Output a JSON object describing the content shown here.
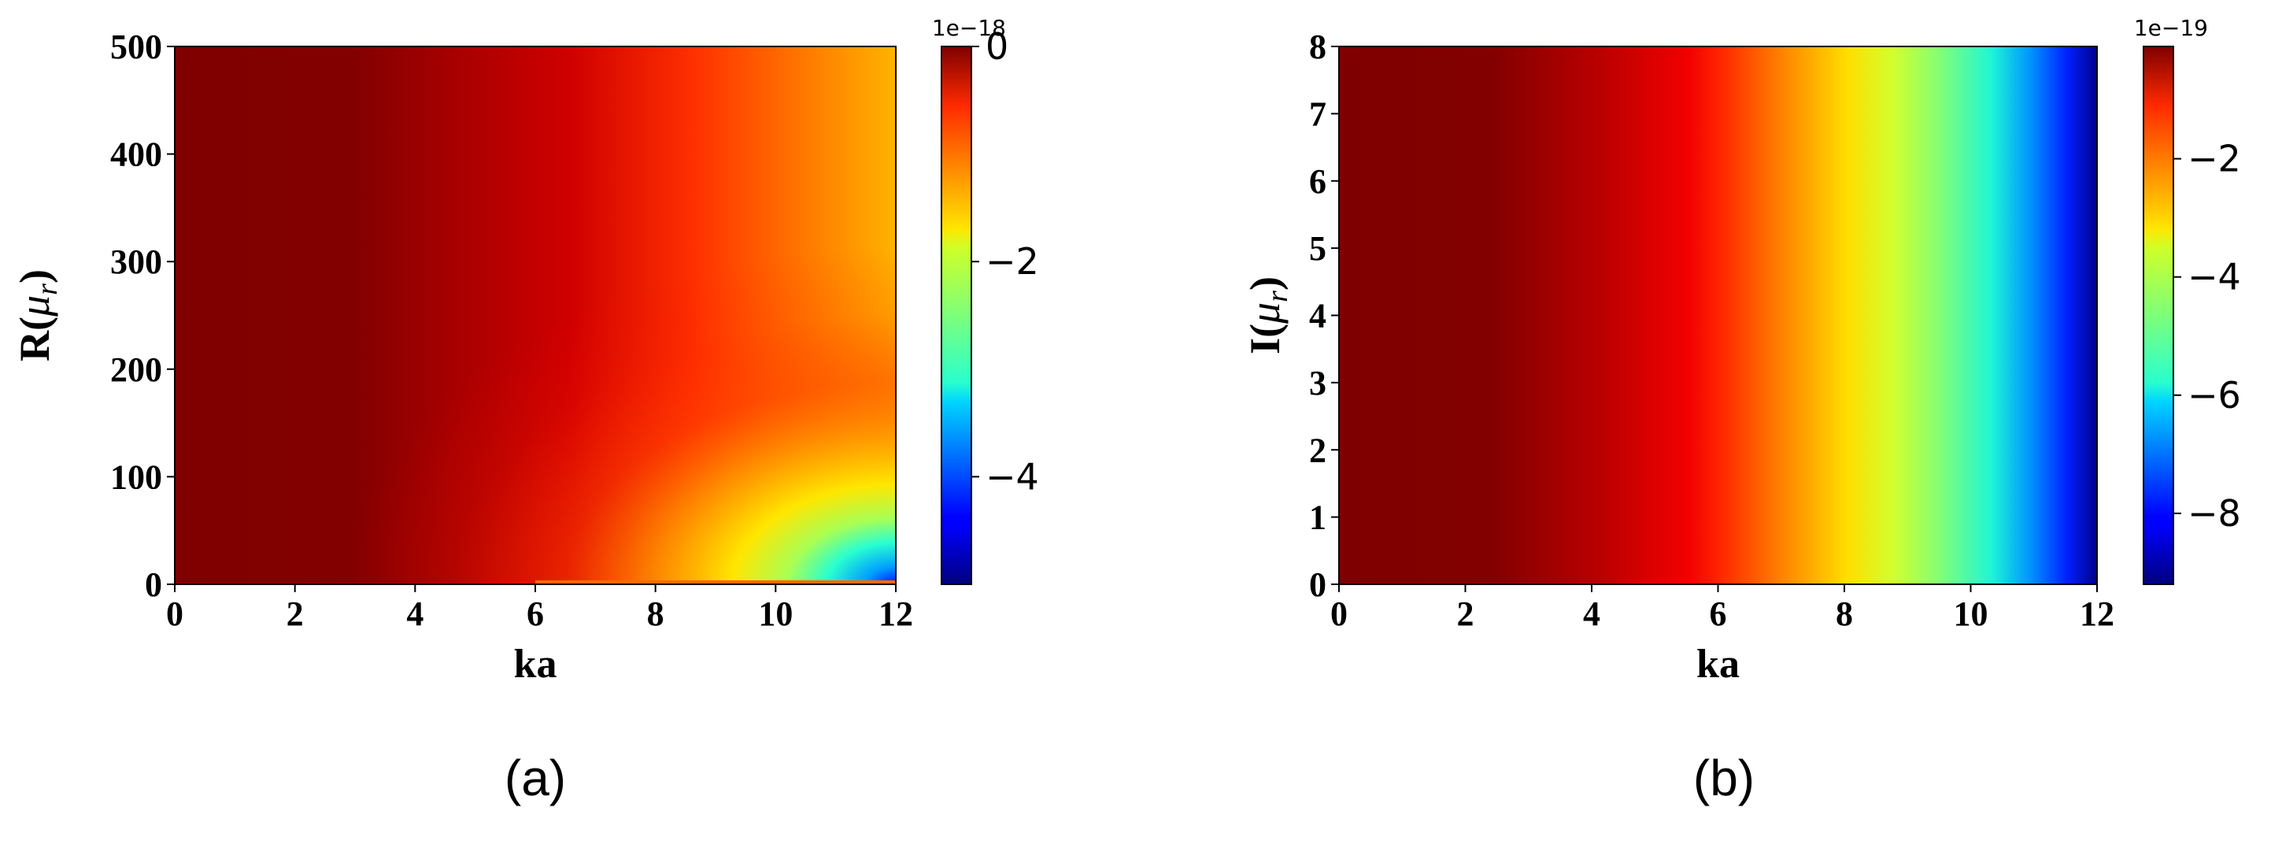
{
  "chart_data": [
    {
      "type": "heatmap",
      "panel_label": "(a)",
      "xlabel": "ka",
      "ylabel_main": "R(",
      "ylabel_sym": "μ",
      "ylabel_sub": "r",
      "ylabel_close": ")",
      "xlim": [
        0,
        12
      ],
      "ylim": [
        0,
        500
      ],
      "xticks": [
        "0",
        "2",
        "4",
        "6",
        "8",
        "10",
        "12"
      ],
      "yticks": [
        "0",
        "100",
        "200",
        "300",
        "400",
        "500"
      ],
      "colorbar": {
        "colormap": "jet",
        "range": [
          -5,
          0
        ],
        "offset_label": "1e−18",
        "ticks": [
          "0",
          "−2",
          "−4"
        ]
      }
    },
    {
      "type": "heatmap",
      "panel_label": "(b)",
      "xlabel": "ka",
      "ylabel_main": "I(",
      "ylabel_sym": "μ",
      "ylabel_sub": "r",
      "ylabel_close": ")",
      "xlim": [
        0,
        12
      ],
      "ylim": [
        0,
        8
      ],
      "xticks": [
        "0",
        "2",
        "4",
        "6",
        "8",
        "10",
        "12"
      ],
      "yticks": [
        "0",
        "1",
        "2",
        "3",
        "4",
        "5",
        "6",
        "7",
        "8"
      ],
      "colorbar": {
        "colormap": "jet",
        "range": [
          -9.2,
          -0.1
        ],
        "offset_label": "1e−19",
        "ticks": [
          "−2",
          "−4",
          "−6",
          "−8"
        ]
      }
    }
  ]
}
